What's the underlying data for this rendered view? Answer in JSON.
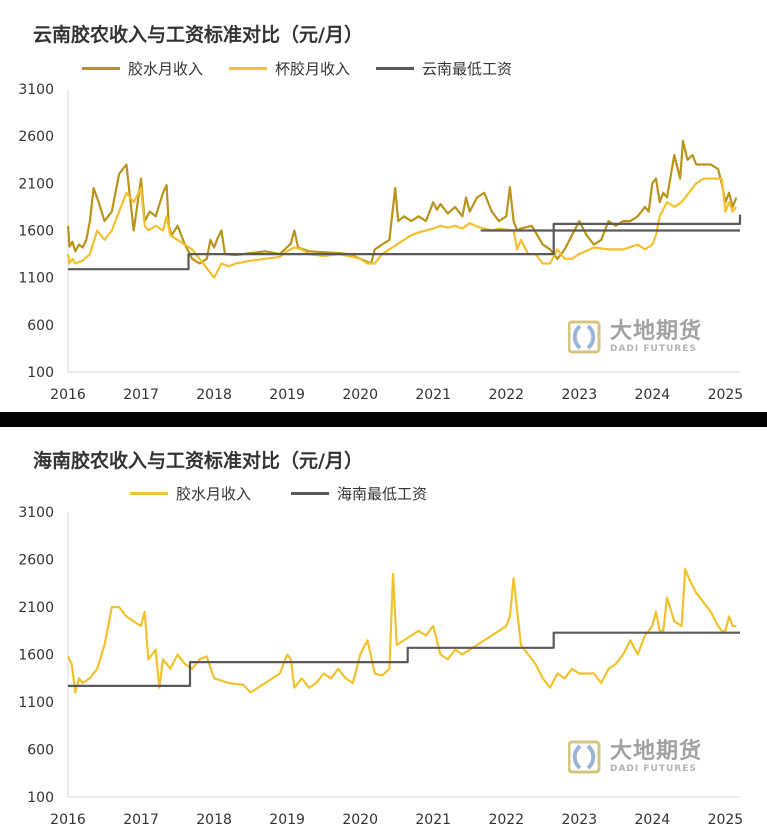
{
  "chart_data": [
    {
      "type": "line",
      "title": "云南胶农收入与工资标准对比（元/月）",
      "ylim": [
        100,
        3100
      ],
      "yticks": [
        100,
        600,
        1100,
        1600,
        2100,
        2600,
        3100
      ],
      "xticks": [
        "2016",
        "2017",
        "2018",
        "2019",
        "2020",
        "2021",
        "2022",
        "2023",
        "2024",
        "2025"
      ],
      "xlim": [
        2016.0,
        2025.2
      ],
      "grid": false,
      "legend_position": "top",
      "series": [
        {
          "name": "胶水月收入",
          "color": "#B8941A",
          "x": [
            2016.0,
            2016.02,
            2016.06,
            2016.1,
            2016.15,
            2016.2,
            2016.25,
            2016.3,
            2016.35,
            2016.42,
            2016.5,
            2016.6,
            2016.7,
            2016.8,
            2016.9,
            2017.0,
            2017.05,
            2017.12,
            2017.2,
            2017.3,
            2017.35,
            2017.38,
            2017.42,
            2017.5,
            2017.6,
            2017.7,
            2017.8,
            2017.9,
            2017.95,
            2018.0,
            2018.05,
            2018.1,
            2018.15,
            2018.3,
            2018.5,
            2018.7,
            2018.9,
            2019.05,
            2019.1,
            2019.15,
            2019.3,
            2019.5,
            2019.7,
            2019.85,
            2020.0,
            2020.15,
            2020.2,
            2020.3,
            2020.4,
            2020.48,
            2020.52,
            2020.6,
            2020.7,
            2020.8,
            2020.9,
            2021.0,
            2021.05,
            2021.1,
            2021.2,
            2021.3,
            2021.4,
            2021.45,
            2021.5,
            2021.6,
            2021.7,
            2021.8,
            2021.9,
            2022.0,
            2022.05,
            2022.1,
            2022.15,
            2022.2,
            2022.35,
            2022.5,
            2022.6,
            2022.7,
            2022.8,
            2022.9,
            2023.0,
            2023.1,
            2023.2,
            2023.3,
            2023.4,
            2023.5,
            2023.6,
            2023.7,
            2023.8,
            2023.9,
            2023.95,
            2024.0,
            2024.05,
            2024.1,
            2024.15,
            2024.2,
            2024.3,
            2024.38,
            2024.42,
            2024.48,
            2024.55,
            2024.6,
            2024.7,
            2024.8,
            2024.9,
            2024.95,
            2025.0,
            2025.05,
            2025.1,
            2025.15
          ],
          "values": [
            1650,
            1430,
            1480,
            1380,
            1450,
            1420,
            1500,
            1700,
            2050,
            1900,
            1700,
            1800,
            2200,
            2300,
            1600,
            2150,
            1700,
            1800,
            1750,
            2000,
            2080,
            1650,
            1550,
            1650,
            1450,
            1300,
            1250,
            1300,
            1500,
            1420,
            1520,
            1600,
            1350,
            1340,
            1360,
            1380,
            1350,
            1460,
            1600,
            1420,
            1380,
            1370,
            1360,
            1350,
            1300,
            1250,
            1400,
            1450,
            1500,
            2050,
            1700,
            1750,
            1700,
            1750,
            1700,
            1900,
            1820,
            1880,
            1780,
            1850,
            1750,
            1950,
            1800,
            1950,
            2000,
            1800,
            1700,
            1750,
            2060,
            1700,
            1600,
            1620,
            1650,
            1450,
            1400,
            1300,
            1400,
            1550,
            1700,
            1550,
            1450,
            1500,
            1700,
            1650,
            1700,
            1700,
            1750,
            1850,
            1800,
            2100,
            2150,
            1900,
            2000,
            1950,
            2400,
            2150,
            2550,
            2350,
            2400,
            2300,
            2300,
            2300,
            2250,
            2100,
            1900,
            2000,
            1850,
            1950
          ]
        },
        {
          "name": "杯胶月收入",
          "color": "#F2C12E",
          "x": [
            2016.0,
            2016.02,
            2016.06,
            2016.1,
            2016.2,
            2016.3,
            2016.4,
            2016.5,
            2016.6,
            2016.7,
            2016.8,
            2016.9,
            2017.0,
            2017.05,
            2017.1,
            2017.2,
            2017.3,
            2017.35,
            2017.4,
            2017.5,
            2017.6,
            2017.7,
            2017.8,
            2017.9,
            2018.0,
            2018.1,
            2018.2,
            2018.3,
            2018.5,
            2018.7,
            2018.9,
            2019.0,
            2019.1,
            2019.2,
            2019.3,
            2019.5,
            2019.7,
            2019.9,
            2020.0,
            2020.1,
            2020.2,
            2020.3,
            2020.4,
            2020.5,
            2020.6,
            2020.7,
            2020.8,
            2020.9,
            2021.0,
            2021.1,
            2021.2,
            2021.3,
            2021.4,
            2021.5,
            2021.6,
            2021.7,
            2021.8,
            2021.9,
            2022.0,
            2022.1,
            2022.15,
            2022.2,
            2022.3,
            2022.4,
            2022.5,
            2022.6,
            2022.7,
            2022.8,
            2022.9,
            2023.0,
            2023.2,
            2023.4,
            2023.6,
            2023.8,
            2023.9,
            2024.0,
            2024.05,
            2024.1,
            2024.2,
            2024.3,
            2024.4,
            2024.5,
            2024.6,
            2024.7,
            2024.8,
            2024.9,
            2024.95,
            2025.0,
            2025.05,
            2025.1,
            2025.15
          ],
          "values": [
            1350,
            1250,
            1300,
            1250,
            1280,
            1350,
            1600,
            1500,
            1600,
            1800,
            2000,
            1900,
            2050,
            1650,
            1600,
            1650,
            1600,
            1750,
            1550,
            1500,
            1450,
            1400,
            1300,
            1200,
            1100,
            1250,
            1220,
            1250,
            1280,
            1300,
            1320,
            1380,
            1420,
            1400,
            1350,
            1330,
            1350,
            1320,
            1300,
            1250,
            1250,
            1350,
            1400,
            1450,
            1500,
            1550,
            1580,
            1600,
            1620,
            1650,
            1630,
            1650,
            1620,
            1680,
            1640,
            1620,
            1600,
            1620,
            1610,
            1600,
            1400,
            1500,
            1350,
            1350,
            1250,
            1250,
            1400,
            1300,
            1300,
            1350,
            1420,
            1400,
            1400,
            1450,
            1400,
            1450,
            1550,
            1750,
            1900,
            1850,
            1900,
            2000,
            2100,
            2150,
            2150,
            2150,
            2150,
            1800,
            1900,
            1800,
            1850
          ]
        },
        {
          "name": "云南最低工资",
          "color": "#595959",
          "step": true,
          "x": [
            2016.0,
            2017.65,
            2021.65,
            2022.65,
            2025.2
          ],
          "values": [
            1190,
            1350,
            1350,
            1600,
            1600
          ]
        },
        {
          "name": "",
          "color": "#595959",
          "step": true,
          "x": [
            2021.65,
            2022.65,
            2022.65,
            2025.2
          ],
          "values": [
            1600,
            1600,
            1670,
            1770
          ]
        }
      ]
    },
    {
      "type": "line",
      "title": "海南胶农收入与工资标准对比（元/月）",
      "ylim": [
        100,
        3100
      ],
      "yticks": [
        100,
        600,
        1100,
        1600,
        2100,
        2600,
        3100
      ],
      "xticks": [
        "2016",
        "2017",
        "2018",
        "2019",
        "2020",
        "2021",
        "2022",
        "2023",
        "2024",
        "2025"
      ],
      "xlim": [
        2016.0,
        2025.2
      ],
      "grid": false,
      "legend_position": "top",
      "series": [
        {
          "name": "胶水月收入",
          "color": "#F2C12E",
          "x": [
            2016.0,
            2016.05,
            2016.1,
            2016.15,
            2016.2,
            2016.3,
            2016.4,
            2016.5,
            2016.6,
            2016.7,
            2016.8,
            2016.9,
            2017.0,
            2017.05,
            2017.1,
            2017.2,
            2017.25,
            2017.3,
            2017.4,
            2017.5,
            2017.6,
            2017.7,
            2017.8,
            2017.9,
            2018.0,
            2018.2,
            2018.4,
            2018.5,
            2018.7,
            2018.9,
            2019.0,
            2019.05,
            2019.1,
            2019.2,
            2019.3,
            2019.4,
            2019.5,
            2019.6,
            2019.7,
            2019.8,
            2019.9,
            2020.0,
            2020.1,
            2020.2,
            2020.3,
            2020.4,
            2020.45,
            2020.5,
            2020.6,
            2020.7,
            2020.8,
            2020.9,
            2021.0,
            2021.1,
            2021.2,
            2021.3,
            2021.4,
            2021.5,
            2021.6,
            2021.7,
            2021.8,
            2021.9,
            2022.0,
            2022.05,
            2022.1,
            2022.2,
            2022.3,
            2022.4,
            2022.5,
            2022.6,
            2022.7,
            2022.8,
            2022.9,
            2023.0,
            2023.2,
            2023.3,
            2023.4,
            2023.5,
            2023.6,
            2023.7,
            2023.8,
            2023.9,
            2024.0,
            2024.05,
            2024.1,
            2024.15,
            2024.2,
            2024.3,
            2024.4,
            2024.45,
            2024.5,
            2024.6,
            2024.7,
            2024.8,
            2024.9,
            2024.95,
            2025.0,
            2025.05,
            2025.1,
            2025.15
          ],
          "values": [
            1580,
            1500,
            1200,
            1350,
            1300,
            1350,
            1450,
            1700,
            2100,
            2100,
            2000,
            1950,
            1900,
            2050,
            1550,
            1650,
            1250,
            1550,
            1450,
            1600,
            1500,
            1450,
            1550,
            1580,
            1350,
            1300,
            1280,
            1200,
            1300,
            1400,
            1600,
            1550,
            1250,
            1350,
            1250,
            1300,
            1400,
            1350,
            1450,
            1350,
            1300,
            1600,
            1750,
            1400,
            1380,
            1450,
            2450,
            1700,
            1750,
            1800,
            1850,
            1800,
            1900,
            1600,
            1550,
            1650,
            1600,
            1650,
            1700,
            1750,
            1800,
            1850,
            1900,
            2000,
            2400,
            1700,
            1600,
            1500,
            1350,
            1250,
            1400,
            1350,
            1450,
            1400,
            1400,
            1300,
            1450,
            1500,
            1600,
            1750,
            1600,
            1800,
            1900,
            2050,
            1850,
            1850,
            2200,
            1950,
            1900,
            2500,
            2400,
            2250,
            2150,
            2050,
            1900,
            1850,
            1850,
            2000,
            1900,
            1900
          ]
        },
        {
          "name": "海南最低工资",
          "color": "#595959",
          "step": true,
          "x": [
            2016.0,
            2017.67,
            2020.65,
            2022.65,
            2025.2
          ],
          "values": [
            1270,
            1520,
            1670,
            1830,
            1830
          ]
        }
      ]
    }
  ],
  "panels": {
    "top": {
      "title": "云南胶农收入与工资标准对比（元/月）",
      "legend": [
        {
          "label": "胶水月收入",
          "color": "#B8941A"
        },
        {
          "label": "杯胶月收入",
          "color": "#F2C12E"
        },
        {
          "label": "云南最低工资",
          "color": "#595959"
        }
      ]
    },
    "bottom": {
      "title": "海南胶农收入与工资标准对比（元/月）",
      "legend": [
        {
          "label": "胶水月收入",
          "color": "#F2C12E"
        },
        {
          "label": "海南最低工资",
          "color": "#595959"
        }
      ]
    }
  },
  "watermark": {
    "cn": "大地期货",
    "en": "DADI FUTURES",
    "logo_icon": "dadi-logo-icon"
  },
  "colors": {
    "axis": "#D9D9D9",
    "tick_text": "#333333",
    "divider": "#000000"
  }
}
